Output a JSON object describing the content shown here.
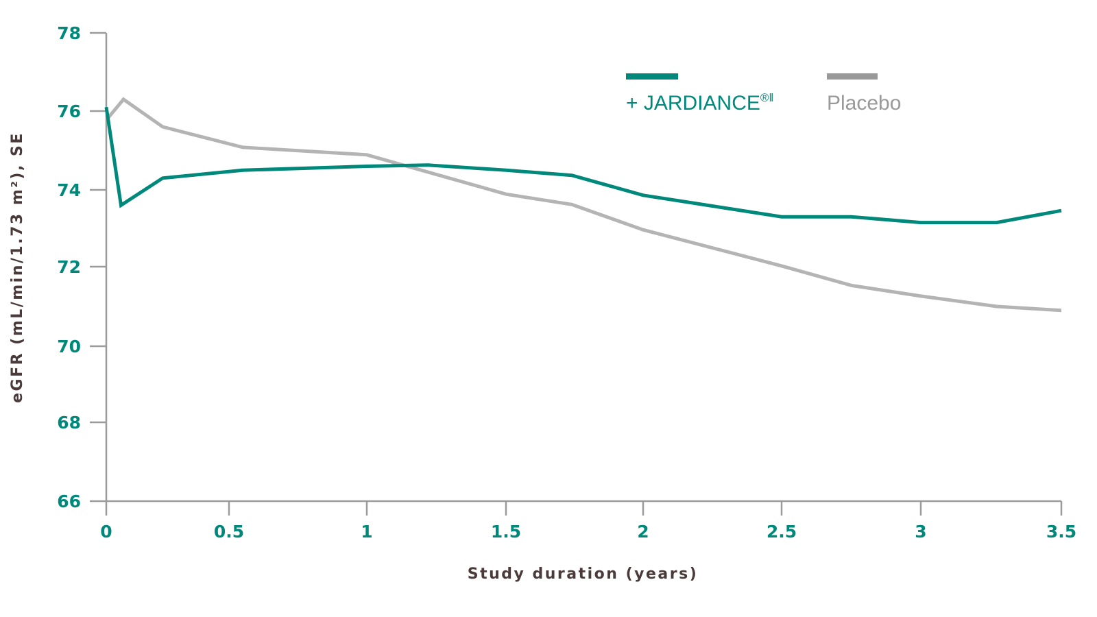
{
  "chart_data": {
    "type": "line",
    "title": "",
    "xlabel": "Study duration (years)",
    "ylabel": "eGFR (mL/min/1.73 m²), SE",
    "xlim": [
      0,
      3.5
    ],
    "ylim": [
      66,
      78
    ],
    "x_ticks": [
      "0",
      "0.5",
      "1",
      "1.5",
      "2",
      "2.5",
      "3",
      "3.5"
    ],
    "y_ticks": [
      "66",
      "68",
      "70",
      "72",
      "74",
      "76",
      "78"
    ],
    "grid": false,
    "legend_position": "top-right",
    "series": [
      {
        "name": "+ JARDIANCE",
        "name_superscript": "®‖",
        "color": "#00897a",
        "x": [
          0,
          0.06,
          0.23,
          0.55,
          1,
          1.22,
          1.5,
          1.74,
          2,
          2.5,
          2.75,
          3,
          3.27,
          3.5
        ],
        "y": [
          76.1,
          73.6,
          74.3,
          74.5,
          74.6,
          74.63,
          74.5,
          74.37,
          73.86,
          73.3,
          73.3,
          73.15,
          73.15,
          73.46
        ]
      },
      {
        "name": "Placebo",
        "color": "#b4b4b4",
        "legend_color": "#999999",
        "x": [
          0,
          0.07,
          0.23,
          0.55,
          1,
          1.5,
          1.74,
          2,
          2.5,
          2.75,
          3,
          3.27,
          3.5
        ],
        "y": [
          75.77,
          76.3,
          75.6,
          75.08,
          74.89,
          73.89,
          73.62,
          72.96,
          72.02,
          71.53,
          71.26,
          71.0,
          70.9
        ]
      }
    ]
  }
}
